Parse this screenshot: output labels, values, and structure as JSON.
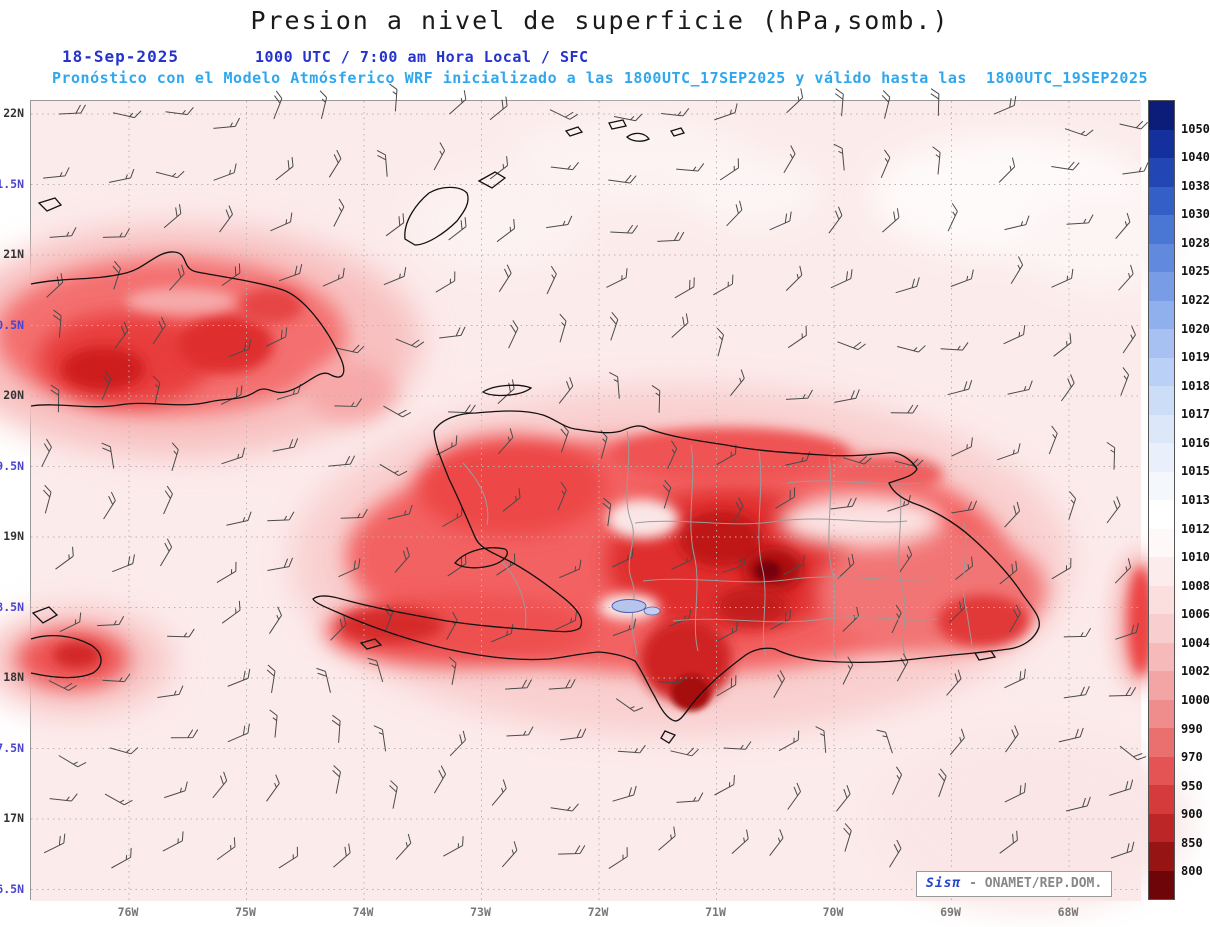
{
  "title": "Presion a nivel de superficie (hPa,somb.)",
  "subtitle": {
    "date": "18-Sep-2025",
    "time": "1000 UTC / 7:00 am Hora Local / SFC",
    "forecast": "Pronóstico con el Modelo Atmósferico WRF inicializado a las 1800UTC_17SEP2025 y válido hasta las  1800UTC_19SEP2025"
  },
  "axes": {
    "x_ticks": [
      "76W",
      "75W",
      "74W",
      "73W",
      "72W",
      "71W",
      "70W",
      "69W",
      "68W"
    ],
    "y_ticks": [
      {
        "label": "22N",
        "color": "#333333"
      },
      {
        "label": "1.5N",
        "color": "#4a44cf"
      },
      {
        "label": "21N",
        "color": "#333333"
      },
      {
        "label": "0.5N",
        "color": "#4a44cf"
      },
      {
        "label": "20N",
        "color": "#333333"
      },
      {
        "label": "9.5N",
        "color": "#4a44cf"
      },
      {
        "label": "19N",
        "color": "#333333"
      },
      {
        "label": "8.5N",
        "color": "#4a44cf"
      },
      {
        "label": "18N",
        "color": "#333333"
      },
      {
        "label": "7.5N",
        "color": "#4a44cf"
      },
      {
        "label": "17N",
        "color": "#333333"
      },
      {
        "label": "6.5N",
        "color": "#4a44cf"
      }
    ]
  },
  "colorbar": {
    "labels": [
      "1050",
      "1040",
      "1038",
      "1030",
      "1028",
      "1025",
      "1022",
      "1020",
      "1019",
      "1018",
      "1017",
      "1016",
      "1015",
      "1013",
      "1012",
      "1010",
      "1008",
      "1006",
      "1004",
      "1002",
      "1000",
      "990",
      "970",
      "950",
      "900",
      "850",
      "800"
    ],
    "colors": [
      "#0b1d78",
      "#13309c",
      "#2247b4",
      "#335fc6",
      "#4a76d4",
      "#6189de",
      "#789de6",
      "#8fb0ed",
      "#a6c1f2",
      "#bad0f6",
      "#ccddf8",
      "#dce8fa",
      "#e9f0fc",
      "#f4f8fd",
      "#ffffff",
      "#fff8f8",
      "#fdecec",
      "#fbdede",
      "#f9cece",
      "#f6baba",
      "#f3a4a4",
      "#ef8c8c",
      "#ea7070",
      "#e45454",
      "#d63b3b",
      "#bd2626",
      "#971414",
      "#6d0509"
    ]
  },
  "watermark": {
    "brand": "Sisπ",
    "org": "- ONAMET/REP.DOM."
  },
  "chart_data": {
    "type": "heatmap",
    "title": "Presion a nivel de superficie (hPa,somb.)",
    "units": "hPa",
    "x_ticks": [
      "76W",
      "75W",
      "74W",
      "73W",
      "72W",
      "71W",
      "70W",
      "69W",
      "68W"
    ],
    "y_ticks": [
      "22N",
      "1.5N",
      "21N",
      "0.5N",
      "20N",
      "9.5N",
      "19N",
      "8.5N",
      "18N",
      "7.5N",
      "17N",
      "6.5N"
    ],
    "levels_hPa": [
      1050,
      1040,
      1038,
      1030,
      1028,
      1025,
      1022,
      1020,
      1019,
      1018,
      1017,
      1016,
      1015,
      1013,
      1012,
      1010,
      1008,
      1006,
      1004,
      1002,
      1000,
      990,
      970,
      950,
      900,
      850,
      800
    ],
    "shaded_features": [
      {
        "region": "open ocean background",
        "approx_hPa": "1012-1015",
        "shade": "pale pink to white"
      },
      {
        "region": "eastern Cuba (upper left landmass)",
        "approx_hPa": "1000-1008",
        "shade": "red with darker cores"
      },
      {
        "region": "Hispaniola interior",
        "approx_hPa": "990-1004",
        "shade": "red with near-black dark-red cores"
      },
      {
        "region": "eastern Jamaica (lower left)",
        "approx_hPa": "1002-1008",
        "shade": "red"
      },
      {
        "region": "right map edge streak",
        "approx_hPa": "1004-1008",
        "shade": "red"
      }
    ],
    "overlay": "wind barbs on a regular grid",
    "legend_position": "right vertical colorbar"
  }
}
